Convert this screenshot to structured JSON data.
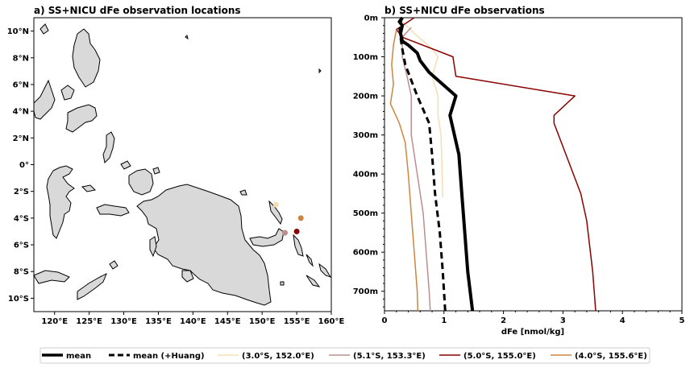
{
  "panel_a": {
    "title": "a) SS+NICU dFe observation locations",
    "lon_ticks": [
      "120°E",
      "125°E",
      "130°E",
      "135°E",
      "140°E",
      "145°E",
      "150°E",
      "155°E",
      "160°E"
    ],
    "lat_ticks": [
      "10°N",
      "8°N",
      "6°N",
      "4°N",
      "2°N",
      "0°",
      "2°S",
      "4°S",
      "6°S",
      "8°S",
      "10°S"
    ],
    "land_color": "#d9d9d9"
  },
  "chart_data": [
    {
      "type": "scatter",
      "title": "a) SS+NICU dFe observation locations",
      "xlim": [
        117,
        160
      ],
      "ylim": [
        -11,
        11
      ],
      "points": [
        {
          "label": "(3.0°S, 152.0°E)",
          "lon": 152.0,
          "lat": -3.0,
          "color": "#f5deb3"
        },
        {
          "label": "(5.1°S, 153.3°E)",
          "lon": 153.3,
          "lat": -5.1,
          "color": "#bc8f8f"
        },
        {
          "label": "(5.0°S, 155.0°E)",
          "lon": 155.0,
          "lat": -5.0,
          "color": "#8b0000"
        },
        {
          "label": "(4.0°S, 155.6°E)",
          "lon": 155.6,
          "lat": -4.0,
          "color": "#cd853f"
        }
      ]
    },
    {
      "type": "line",
      "title": "b) SS+NICU dFe observations",
      "xlabel": "dFe [nmol/kg]",
      "xlim": [
        0,
        5
      ],
      "ylim": [
        750,
        0
      ],
      "x_ticks": [
        "0",
        "1",
        "2",
        "3",
        "4",
        "5"
      ],
      "y_ticks": [
        "0m",
        "100m",
        "200m",
        "300m",
        "400m",
        "500m",
        "600m",
        "700m"
      ],
      "series": [
        {
          "name": "mean",
          "color": "#000000",
          "style": "solid",
          "width": 4,
          "points": [
            [
              0.3,
              0
            ],
            [
              0.25,
              10
            ],
            [
              0.3,
              20
            ],
            [
              0.27,
              40
            ],
            [
              0.3,
              60
            ],
            [
              0.4,
              70
            ],
            [
              0.55,
              90
            ],
            [
              0.6,
              110
            ],
            [
              0.75,
              140
            ],
            [
              1.05,
              180
            ],
            [
              1.2,
              200
            ],
            [
              1.1,
              250
            ],
            [
              1.25,
              350
            ],
            [
              1.3,
              450
            ],
            [
              1.35,
              550
            ],
            [
              1.4,
              650
            ],
            [
              1.48,
              750
            ]
          ]
        },
        {
          "name": "mean (+Huang)",
          "color": "#000000",
          "style": "dashed",
          "width": 3,
          "points": [
            [
              0.3,
              0
            ],
            [
              0.25,
              20
            ],
            [
              0.27,
              50
            ],
            [
              0.3,
              80
            ],
            [
              0.35,
              120
            ],
            [
              0.45,
              160
            ],
            [
              0.55,
              200
            ],
            [
              0.75,
              270
            ],
            [
              0.8,
              350
            ],
            [
              0.85,
              450
            ],
            [
              0.93,
              550
            ],
            [
              0.98,
              650
            ],
            [
              1.02,
              750
            ]
          ]
        },
        {
          "name": "(3.0°S, 152.0°E)",
          "color": "#f5deb3",
          "style": "solid",
          "width": 1.5,
          "points": [
            [
              0.3,
              10
            ],
            [
              0.5,
              40
            ],
            [
              0.8,
              80
            ],
            [
              0.9,
              100
            ],
            [
              0.8,
              150
            ],
            [
              0.9,
              200
            ],
            [
              0.9,
              250
            ],
            [
              0.95,
              300
            ],
            [
              0.97,
              400
            ],
            [
              0.98,
              460
            ]
          ]
        },
        {
          "name": "(5.1°S, 153.3°E)",
          "color": "#bc8f8f",
          "style": "solid",
          "width": 1.5,
          "points": [
            [
              0.45,
              25
            ],
            [
              0.3,
              50
            ],
            [
              0.3,
              100
            ],
            [
              0.38,
              150
            ],
            [
              0.45,
              200
            ],
            [
              0.45,
              300
            ],
            [
              0.55,
              400
            ],
            [
              0.65,
              500
            ],
            [
              0.7,
              600
            ],
            [
              0.75,
              700
            ],
            [
              0.77,
              750
            ]
          ]
        },
        {
          "name": "(5.0°S, 155.0°E)",
          "color": "#8b0000",
          "style": "solid",
          "width": 1.5,
          "points": [
            [
              0.5,
              0
            ],
            [
              0.2,
              30
            ],
            [
              0.3,
              50
            ],
            [
              1.15,
              100
            ],
            [
              1.2,
              150
            ],
            [
              3.2,
              200
            ],
            [
              2.85,
              250
            ],
            [
              2.85,
              270
            ],
            [
              3.3,
              450
            ],
            [
              3.4,
              520
            ],
            [
              3.5,
              650
            ],
            [
              3.55,
              750
            ]
          ]
        },
        {
          "name": "(4.0°S, 155.6°E)",
          "color": "#cd853f",
          "style": "solid",
          "width": 1.5,
          "points": [
            [
              0.2,
              30
            ],
            [
              0.15,
              70
            ],
            [
              0.12,
              120
            ],
            [
              0.15,
              170
            ],
            [
              0.1,
              220
            ],
            [
              0.25,
              270
            ],
            [
              0.35,
              320
            ],
            [
              0.4,
              400
            ],
            [
              0.45,
              500
            ],
            [
              0.5,
              600
            ],
            [
              0.55,
              700
            ],
            [
              0.56,
              750
            ]
          ]
        }
      ]
    }
  ]
}
